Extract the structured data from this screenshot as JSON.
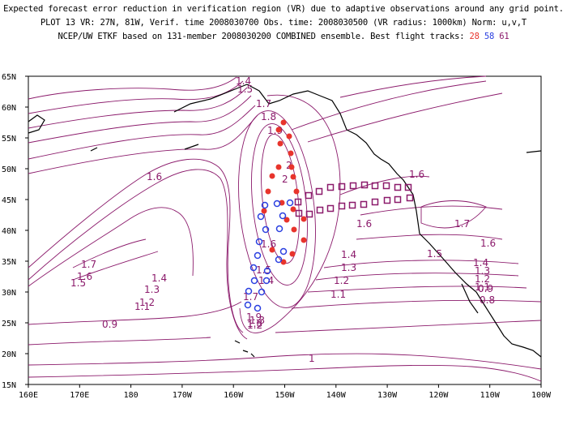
{
  "title": {
    "line1": "Expected forecast error reduction in verification region (VR) due to adaptive observations around any grid point.",
    "line2": "PLOT 13 VR: 27N, 81W, Verif. time 2008030700 Obs. time: 2008030500 (VR radius: 1000km) Norm: u,v,T",
    "line3_prefix": "NCEP/UW ETKF based on 131-member 2008030200 COMBINED ensemble.  Best flight tracks:",
    "track_a": "28",
    "track_b": "58",
    "track_c": "61"
  },
  "map": {
    "projection": "lat-lon",
    "lon_range": [
      160,
      260
    ],
    "lat_range": [
      15,
      65
    ],
    "lat_ticks": [
      "65N",
      "60N",
      "55N",
      "50N",
      "45N",
      "40N",
      "35N",
      "30N",
      "25N",
      "20N",
      "15N"
    ],
    "lon_ticks": [
      "160E",
      "170E",
      "180",
      "170W",
      "160W",
      "150W",
      "140W",
      "130W",
      "120W",
      "110W",
      "100W"
    ],
    "contour_color": "#8b1a6b",
    "contour_labels": [
      "1.4",
      "1.5",
      "1.7",
      "1.8",
      "1.9",
      "2",
      "1.6",
      "1.6",
      "1.6",
      "1.7",
      "1.6",
      "1.5",
      "1.7",
      "1.6",
      "1.5",
      "1.4",
      "1.3",
      "1.2",
      "1.1",
      "0.9",
      "1.4",
      "1.3",
      "1.2",
      "1.1",
      "1.4",
      "1.3",
      "1.2",
      "1.1",
      "0.9",
      "0.8",
      "1",
      "1.9",
      "1.8",
      "1.7",
      "1.6",
      "1.5",
      "1.4",
      "1.3",
      "1.2",
      "2"
    ]
  },
  "tracks": [
    {
      "id": "28",
      "color": "#e8342c",
      "marker": "filled-circle"
    },
    {
      "id": "58",
      "color": "#2a3fe0",
      "marker": "open-circle"
    },
    {
      "id": "61",
      "color": "#8b1a6b",
      "marker": "open-square"
    }
  ]
}
